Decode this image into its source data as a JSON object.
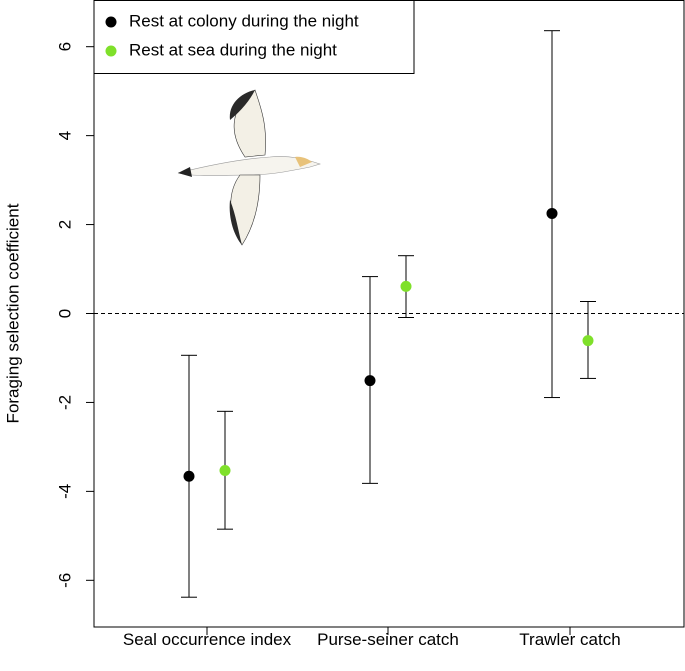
{
  "chart_data": {
    "type": "errorbar",
    "y_label": "Foraging selection coefficient",
    "categories": [
      "Seal occurrence index",
      "Purse-seiner catch",
      "Trawler catch"
    ],
    "series": [
      {
        "name": "Rest at colony during the night",
        "color": "#000000",
        "values": [
          -3.66,
          -1.51,
          2.25
        ],
        "lower": [
          -6.38,
          -3.82,
          -1.89
        ],
        "upper": [
          -0.94,
          0.83,
          6.36
        ]
      },
      {
        "name": "Rest at sea during the night",
        "color": "#7fe02a",
        "values": [
          -3.53,
          0.61,
          -0.61
        ],
        "lower": [
          -4.85,
          -0.09,
          -1.46
        ],
        "upper": [
          -2.2,
          1.3,
          0.27
        ]
      }
    ],
    "ylim": [
      -7.05,
      7.05
    ],
    "yticks": [
      -6,
      -4,
      -2,
      0,
      2,
      4,
      6
    ],
    "reference_line": 0,
    "legend": "top-left"
  }
}
